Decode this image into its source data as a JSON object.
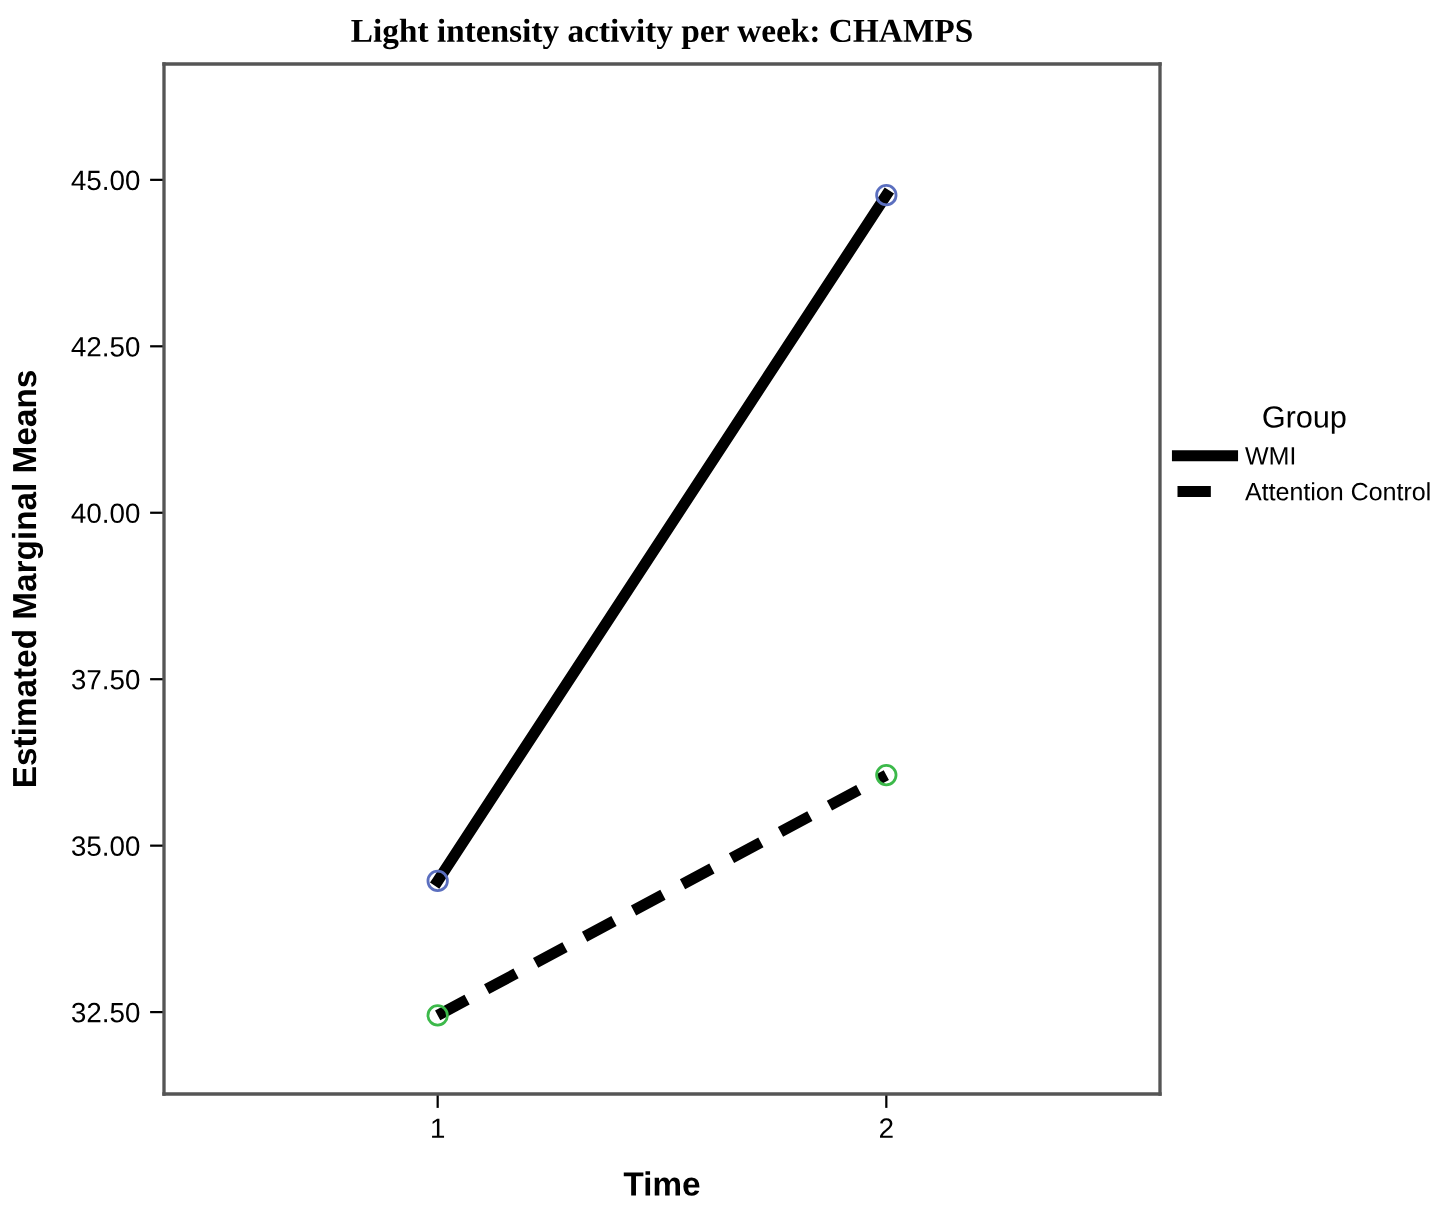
{
  "chart_data": {
    "type": "line",
    "title": "Light intensity activity per week: CHAMPS",
    "xlabel": "Time",
    "ylabel": "Estimated Marginal Means",
    "legend_title": "Group",
    "x": [
      1,
      2
    ],
    "xlim": [
      0.39,
      2.61
    ],
    "xticks": [
      1,
      2
    ],
    "ylim": [
      31.27,
      46.74
    ],
    "yticks": [
      {
        "value": 32.5,
        "label": "32.50"
      },
      {
        "value": 35,
        "label": "35.00"
      },
      {
        "value": 37.5,
        "label": "37.50"
      },
      {
        "value": 40,
        "label": "40.00"
      },
      {
        "value": 42.5,
        "label": "42.50"
      },
      {
        "value": 45,
        "label": "45.00"
      }
    ],
    "series": [
      {
        "name": "WMI",
        "color": "#000000",
        "colors": [
          "#5b6fbf",
          "#5b6fbf"
        ],
        "line_style": "solid",
        "values": [
          34.47,
          44.77
        ]
      },
      {
        "name": "Attention Control",
        "color": "#000000",
        "colors": [
          "#3cb94a",
          "#3cb94a"
        ],
        "line_style": "dashed",
        "values": [
          32.45,
          36.06
        ]
      }
    ],
    "marker": "circle",
    "grid": false,
    "legend": "right"
  }
}
